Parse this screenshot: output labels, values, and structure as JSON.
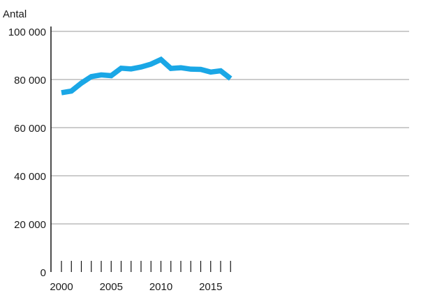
{
  "chart_data": {
    "type": "line",
    "title": "",
    "xlabel": "",
    "ylabel": "Antal",
    "x": [
      2000,
      2001,
      2002,
      2003,
      2004,
      2005,
      2006,
      2007,
      2008,
      2009,
      2010,
      2011,
      2012,
      2013,
      2014,
      2015,
      2016,
      2017
    ],
    "series": [
      {
        "values": [
          74500,
          75200,
          78500,
          81200,
          81900,
          81600,
          84700,
          84400,
          85200,
          86400,
          88300,
          84600,
          84900,
          84300,
          84200,
          83100,
          83600,
          80400
        ],
        "color": "#1aa7e6"
      }
    ],
    "xlim": [
      1999.5,
      2017.5
    ],
    "ylim": [
      0,
      100000
    ],
    "y_ticks": [
      0,
      20000,
      40000,
      60000,
      80000,
      100000
    ],
    "y_tick_labels": [
      "0",
      "20 000",
      "40 000",
      "60 000",
      "80 000",
      "100 000"
    ],
    "x_ticks": [
      2000,
      2005,
      2010,
      2015
    ],
    "x_tick_labels": [
      "2000",
      "2005",
      "2010",
      "2015"
    ],
    "grid": "horizontal",
    "legend": "none"
  }
}
